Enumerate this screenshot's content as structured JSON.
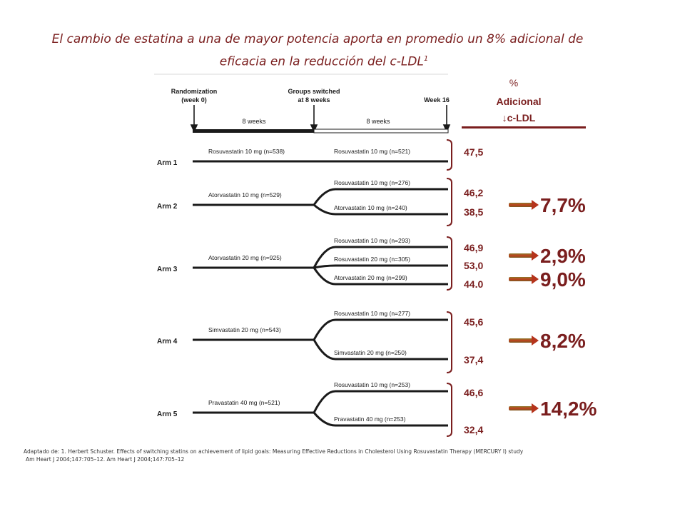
{
  "title": {
    "line1": "El cambio de estatina a una de mayor potencia aporta en promedio un 8% adicional de",
    "line2": "eficacia en la reducción del c-LDL",
    "superscript": "1"
  },
  "timeline": {
    "randomization": "Randomization",
    "week0": "(week 0)",
    "switched": "Groups switched",
    "at8weeks": "at 8 weeks",
    "week16": "Week 16",
    "period1": "8 weeks",
    "period2": "8 weeks"
  },
  "column_header": {
    "line1": "%",
    "line2": "Adicional",
    "line3": "↓c-LDL"
  },
  "arms": [
    {
      "label": "Arm 1",
      "initial": "Rosuvastatin 10 mg (n=538)",
      "branches": [
        "Rosuvastatin 10 mg (n=521)"
      ],
      "values": [
        "47,5"
      ],
      "highlights": []
    },
    {
      "label": "Arm 2",
      "initial": "Atorvastatin 10 mg (n=529)",
      "branches": [
        "Rosuvastatin 10 mg (n=276)",
        "Atorvastatin 10 mg (n=240)"
      ],
      "values": [
        "46,2",
        "38,5"
      ],
      "highlights": [
        "7,7%"
      ]
    },
    {
      "label": "Arm 3",
      "initial": "Atorvastatin 20 mg (n=925)",
      "branches": [
        "Rosuvastatin 10 mg (n=293)",
        "Rosuvastatin 20 mg (n=305)",
        "Atorvastatin 20 mg (n=299)"
      ],
      "values": [
        "46,9",
        "53,0",
        "44.0"
      ],
      "highlights": [
        "2,9%",
        "9,0%"
      ]
    },
    {
      "label": "Arm 4",
      "initial": "Simvastatin 20 mg (n=543)",
      "branches": [
        "Rosuvastatin 10 mg (n=277)",
        "Simvastatin 20 mg (n=250)"
      ],
      "values": [
        "45,6",
        "37,4"
      ],
      "highlights": [
        "8,2%"
      ]
    },
    {
      "label": "Arm 5",
      "initial": "Pravastatin 40 mg (n=521)",
      "branches": [
        "Rosuvastatin 10 mg (n=253)",
        "Pravastatin 40 mg (n=253)"
      ],
      "values": [
        "46,6",
        "32,4"
      ],
      "highlights": [
        "14,2%"
      ]
    }
  ],
  "footnote": {
    "line1": "Adaptado de: 1. Herbert Schuster. Effects of switching statins on achievement of lipid goals: Measuring Effective Reductions in Cholesterol Using Rosuvastatin Therapy (MERCURY I) study",
    "line2": "Am Heart J 2004;147:705–12. Am Heart J 2004;147:705–12"
  },
  "colors": {
    "accent": "#7a1e1e",
    "arrow": "#b5341c",
    "text": "#1a1a1a"
  }
}
